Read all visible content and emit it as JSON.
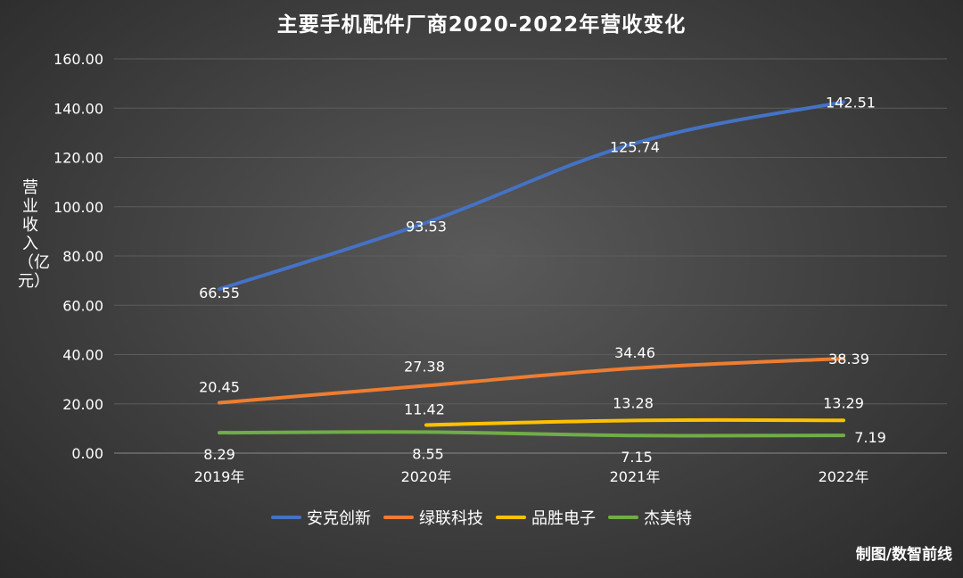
{
  "chart_data": {
    "type": "line",
    "title": "主要手机配件厂商2020-2022年营收变化",
    "ylabel": "营业收入（亿元）",
    "xlabel": "",
    "categories": [
      "2019年",
      "2020年",
      "2021年",
      "2022年"
    ],
    "ylim": [
      0,
      160
    ],
    "yticks": [
      "0.00",
      "20.00",
      "40.00",
      "60.00",
      "80.00",
      "100.00",
      "120.00",
      "140.00",
      "160.00"
    ],
    "grid": true,
    "legend_position": "bottom",
    "series": [
      {
        "name": "安克创新",
        "color": "#4472C4",
        "values": [
          66.55,
          93.53,
          125.74,
          142.51
        ],
        "labels": [
          "66.55",
          "93.53",
          "125.74",
          "142.51"
        ]
      },
      {
        "name": "绿联科技",
        "color": "#ED7D31",
        "values": [
          20.45,
          27.38,
          34.46,
          38.39
        ],
        "labels": [
          "20.45",
          "27.38",
          "34.46",
          "38.39"
        ]
      },
      {
        "name": "品胜电子",
        "color": "#FFC000",
        "values": [
          null,
          11.42,
          13.28,
          13.29
        ],
        "labels": [
          null,
          "11.42",
          "13.28",
          "13.29"
        ]
      },
      {
        "name": "杰美特",
        "color": "#70AD47",
        "values": [
          8.29,
          8.55,
          7.15,
          7.19
        ],
        "labels": [
          "8.29",
          "8.55",
          "7.15",
          "7.19"
        ]
      }
    ]
  },
  "credit": "制图/数智前线"
}
